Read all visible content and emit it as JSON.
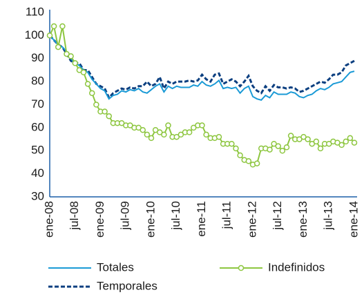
{
  "chart_data": {
    "type": "line",
    "categories": [
      "ene-08",
      null,
      null,
      null,
      null,
      null,
      "jul-08",
      null,
      null,
      null,
      null,
      null,
      "ene-09",
      null,
      null,
      null,
      null,
      null,
      "jul-09",
      null,
      null,
      null,
      null,
      null,
      "ene-10",
      null,
      null,
      null,
      null,
      null,
      "jul-10",
      null,
      null,
      null,
      null,
      null,
      "ene-11",
      null,
      null,
      null,
      null,
      null,
      "jul-11",
      null,
      null,
      null,
      null,
      null,
      "ene-12",
      null,
      null,
      null,
      null,
      null,
      "jul-12",
      null,
      null,
      null,
      null,
      null,
      "ene-13",
      null,
      null,
      null,
      null,
      null,
      "jul-13",
      null,
      null,
      null,
      null,
      null,
      "ene-14"
    ],
    "series": [
      {
        "name": "Totales",
        "color": "#1a9ad6",
        "style": "solid",
        "values": [
          100,
          98,
          96,
          95,
          93,
          90,
          88,
          87,
          85,
          84,
          81,
          79,
          77,
          76,
          72.5,
          74,
          74.5,
          76,
          75.5,
          76.5,
          76,
          77,
          75.5,
          75,
          76.5,
          78,
          79,
          75.5,
          78,
          77,
          78,
          77.5,
          77.5,
          77.5,
          78.5,
          78,
          80,
          78.5,
          78,
          79,
          80.5,
          77,
          77.5,
          77,
          77.5,
          75,
          77,
          78,
          73.5,
          72.5,
          72,
          74,
          73,
          75.5,
          74.5,
          74.5,
          74.5,
          75.5,
          75,
          73.5,
          73,
          74,
          74.5,
          76,
          77,
          76.5,
          77.5,
          79,
          79.5,
          80,
          82,
          84,
          84.5
        ]
      },
      {
        "name": "Indefinidos",
        "color": "#8dc63f",
        "style": "marker",
        "values": [
          100,
          104,
          95,
          104,
          92,
          91,
          88,
          85,
          84,
          79,
          75,
          70,
          67,
          67,
          65,
          62,
          62,
          62,
          61,
          61,
          60,
          60,
          59,
          57,
          55.5,
          59,
          58,
          57,
          61,
          56,
          56,
          57,
          58,
          58,
          60,
          61,
          61,
          57,
          55.5,
          55.5,
          56,
          53,
          53,
          53,
          51,
          48,
          46,
          45.5,
          44,
          44.5,
          51,
          51,
          50.5,
          53,
          52,
          50,
          51.5,
          56.5,
          55,
          55,
          56,
          55,
          53,
          54,
          51,
          53,
          53,
          54,
          53.5,
          52.5,
          54,
          55.5,
          53.5
        ]
      },
      {
        "name": "Temporales",
        "color": "#0b3f80",
        "style": "dashed",
        "values": [
          100,
          98,
          96,
          95,
          92,
          89,
          88,
          88,
          85,
          85,
          82,
          79,
          78,
          77,
          73,
          75,
          76,
          77,
          76.5,
          77.5,
          77,
          78,
          78,
          80,
          78,
          79,
          82,
          77,
          80,
          79,
          80,
          80,
          80,
          80.5,
          80,
          80.5,
          83,
          81,
          80,
          83,
          83.5,
          79,
          80,
          81,
          80,
          78,
          80,
          82.5,
          78,
          76,
          75,
          78,
          76,
          78.5,
          77.5,
          77.5,
          77,
          77.5,
          77,
          75.5,
          76,
          77,
          78,
          79,
          80,
          79.5,
          81,
          83,
          83,
          84,
          87,
          88,
          89
        ]
      }
    ],
    "ylim": [
      30,
      110
    ],
    "yticks": [
      30,
      40,
      50,
      60,
      70,
      80,
      90,
      100,
      110
    ],
    "grid": false
  }
}
